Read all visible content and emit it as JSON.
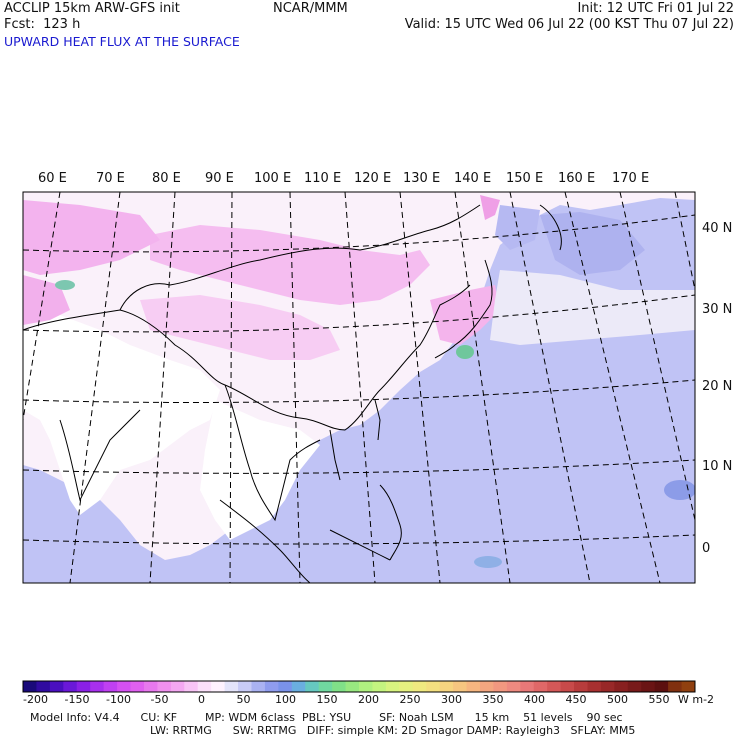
{
  "header": {
    "model": "ACCLIP 15km ARW-GFS init",
    "org": "NCAR/MMM",
    "init": "Init: 12 UTC Fri 01 Jul 22",
    "fcst": "Fcst:  123 h",
    "valid": "Valid: 15 UTC Wed 06 Jul 22 (00 KST Thu 07 Jul 22)",
    "field": "UPWARD HEAT FLUX AT THE SURFACE"
  },
  "map": {
    "lon_labels": [
      "60 E",
      "70 E",
      "80 E",
      "90 E",
      "100 E",
      "110 E",
      "120 E",
      "130 E",
      "140 E",
      "150 E",
      "160 E",
      "170 E"
    ],
    "lat_labels": [
      "40 N",
      "30 N",
      "20 N",
      "10 N",
      "0"
    ],
    "colors": {
      "ocean_fill": "#c0c3f5",
      "land_fill": "#f8eef8",
      "high_flux": "#f5a8ee",
      "green_patch": "#6fc79c",
      "coast": "#000000",
      "grid": "#000000"
    }
  },
  "colorbar": {
    "ticks": [
      "-200",
      "-150",
      "-100",
      "-50",
      "0",
      "50",
      "100",
      "150",
      "200",
      "250",
      "300",
      "350",
      "400",
      "450",
      "500",
      "550"
    ],
    "unit": "W m-2",
    "colors": [
      "#1a0a7a",
      "#300ba0",
      "#4a10c0",
      "#6a18d8",
      "#8a20e6",
      "#a830ee",
      "#c040f2",
      "#d550f2",
      "#e060f0",
      "#e878ee",
      "#f090ee",
      "#f4a8f2",
      "#f8c4f6",
      "#fbe0fa",
      "#fef2fe",
      "#e4e4fa",
      "#c8cbf6",
      "#aab2f2",
      "#8f9cee",
      "#7a92ea",
      "#6aaee0",
      "#66c8c0",
      "#70d8a0",
      "#80e088",
      "#98e880",
      "#b0f080",
      "#c4f480",
      "#d8f480",
      "#e6f080",
      "#f0ea80",
      "#f4e080",
      "#f6d480",
      "#f6c680",
      "#f6b680",
      "#f4a680",
      "#f29880",
      "#ee8a80",
      "#e87878",
      "#e06868",
      "#d45858",
      "#c84a4a",
      "#b83c3c",
      "#a83030",
      "#982828",
      "#882020",
      "#781a1a",
      "#6a1414",
      "#5c1010",
      "#803010",
      "#904010"
    ]
  },
  "footer": {
    "line1": "Model Info: V4.4      CU: KF        MP: WDM 6class  PBL: YSU        SF: Noah LSM      15 km    51 levels    90 sec",
    "line2": "LW: RRTMG      SW: RRTMG   DIFF: simple KM: 2D Smagor DAMP: Rayleigh3   SFLAY: MM5"
  }
}
